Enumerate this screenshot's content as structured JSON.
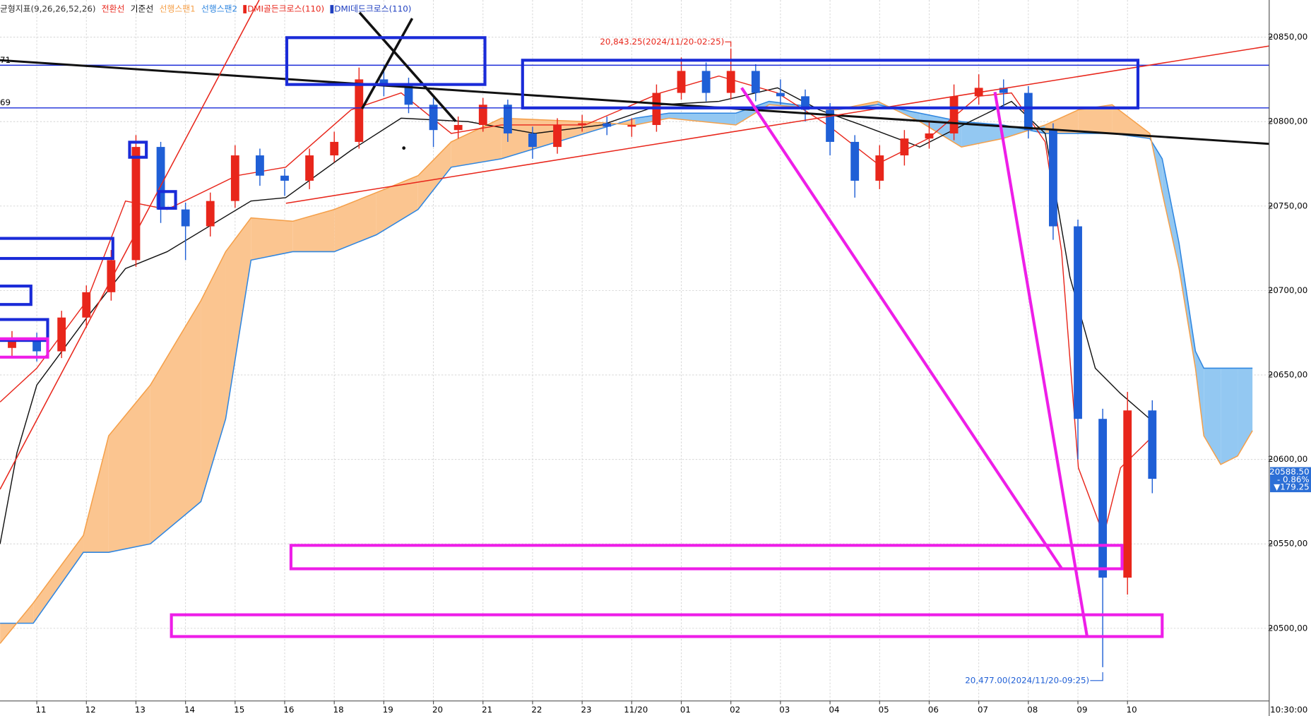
{
  "chart_data": {
    "type": "candlestick",
    "indicator_label": "균형지표(9,26,26,52,26)",
    "xlim": [
      -0.742,
      24.858
    ],
    "ylim": [
      20457,
      20872
    ],
    "xticks": [
      {
        "value": 0,
        "label": "11"
      },
      {
        "value": 1,
        "label": "12"
      },
      {
        "value": 2,
        "label": "13"
      },
      {
        "value": 3,
        "label": "14"
      },
      {
        "value": 4,
        "label": "15"
      },
      {
        "value": 5,
        "label": "16"
      },
      {
        "value": 6,
        "label": "18"
      },
      {
        "value": 7,
        "label": "19"
      },
      {
        "value": 8,
        "label": "20"
      },
      {
        "value": 9,
        "label": "21"
      },
      {
        "value": 10,
        "label": "22"
      },
      {
        "value": 11,
        "label": "23"
      },
      {
        "value": 12,
        "label": "11/20"
      },
      {
        "value": 13,
        "label": "01"
      },
      {
        "value": 14,
        "label": "02"
      },
      {
        "value": 15,
        "label": "03"
      },
      {
        "value": 16,
        "label": "04"
      },
      {
        "value": 17,
        "label": "05"
      },
      {
        "value": 18,
        "label": "06"
      },
      {
        "value": 19,
        "label": "07"
      },
      {
        "value": 20,
        "label": "08"
      },
      {
        "value": 21,
        "label": "09"
      },
      {
        "value": 22,
        "label": "10"
      }
    ],
    "yticks": [
      {
        "value": 20500,
        "label": "20500,00"
      },
      {
        "value": 20550,
        "label": "20550,00"
      },
      {
        "value": 20600,
        "label": "20600,00"
      },
      {
        "value": 20650,
        "label": "20650,00"
      },
      {
        "value": 20700,
        "label": "20700,00"
      },
      {
        "value": 20750,
        "label": "20750,00"
      },
      {
        "value": 20800,
        "label": "20800,00"
      },
      {
        "value": 20850,
        "label": "20850,00"
      }
    ],
    "grid": true,
    "up_color": "#e8261b",
    "down_color": "#1f5fd6",
    "x": [
      -0.5,
      0,
      0.5,
      1,
      1.5,
      2,
      2.5,
      3,
      3.5,
      4,
      4.5,
      5,
      5.5,
      6,
      6.5,
      7,
      7.5,
      8,
      8.5,
      9,
      9.5,
      10,
      10.5,
      11,
      11.5,
      12,
      12.5,
      13,
      13.5,
      14,
      14.5,
      15,
      15.5,
      16,
      16.5,
      17,
      17.5,
      18,
      18.5,
      19,
      19.5,
      20,
      20.5,
      21,
      21.5,
      22,
      22.5
    ],
    "open": [
      20666,
      20671,
      20664,
      20684,
      20699,
      20718,
      20785,
      20748,
      20738,
      20753,
      20780,
      20768,
      20765,
      20780,
      20788,
      20825,
      20822,
      20810,
      20795,
      20798,
      20810,
      20793,
      20785,
      20798,
      20799,
      20797,
      20798,
      20817,
      20830,
      20817,
      20830,
      20817,
      20815,
      20807,
      20788,
      20765,
      20780,
      20790,
      20793,
      20815,
      20820,
      20817,
      20795,
      20738,
      20624,
      20530,
      20629
    ],
    "high": [
      20676,
      20675,
      20688,
      20703,
      20724,
      20792,
      20788,
      20752,
      20758,
      20786,
      20784,
      20772,
      20784,
      20794,
      20832,
      20833,
      20826,
      20814,
      20803,
      20814,
      20813,
      20797,
      20802,
      20804,
      20803,
      20802,
      20822,
      20838,
      20835,
      20843.25,
      20834,
      20825,
      20819,
      20811,
      20792,
      20786,
      20795,
      20800,
      20822,
      20828,
      20825,
      20821,
      20799,
      20742,
      20630,
      20640,
      20635
    ],
    "low": [
      20660,
      20658,
      20660,
      20678,
      20694,
      20714,
      20740,
      20718,
      20732,
      20749,
      20762,
      20756,
      20760,
      20776,
      20784,
      20815,
      20805,
      20785,
      20790,
      20794,
      20788,
      20778,
      20781,
      20794,
      20792,
      20791,
      20794,
      20813,
      20812,
      20813,
      20812,
      20810,
      20800,
      20780,
      20755,
      20760,
      20774,
      20784,
      20789,
      20810,
      20808,
      20790,
      20730,
      20600,
      20477,
      20520,
      20580
    ],
    "close": [
      20671,
      20664,
      20684,
      20699,
      20718,
      20785,
      20748,
      20738,
      20753,
      20780,
      20768,
      20765,
      20780,
      20788,
      20825,
      20822,
      20810,
      20795,
      20798,
      20810,
      20793,
      20785,
      20798,
      20799,
      20797,
      20798,
      20817,
      20830,
      20817,
      20830,
      20817,
      20815,
      20807,
      20788,
      20765,
      20780,
      20790,
      20793,
      20815,
      20820,
      20817,
      20795,
      20738,
      20624,
      20530,
      20629,
      20588.5
    ],
    "series": [
      {
        "name": "전환선",
        "color": "#e8261b",
        "x": [
          -0.74,
          0,
          1.01,
          1.79,
          2.63,
          4.03,
          5.02,
          6.34,
          7.35,
          8.36,
          9.37,
          11.06,
          12.58,
          13.76,
          14.94,
          15.95,
          16.96,
          17.98,
          18.99,
          19.66,
          20.34,
          20.67,
          21.01,
          21.52,
          21.86,
          22.45
        ],
        "values": [
          20634,
          20654,
          20694,
          20753,
          20748,
          20768,
          20773,
          20807,
          20817,
          20793,
          20798,
          20798,
          20817,
          20827,
          20817,
          20798,
          20775,
          20790,
          20815,
          20817,
          20788,
          20723,
          20595,
          20555,
          20595,
          20612
        ]
      },
      {
        "name": "기준선",
        "color": "#111111",
        "x": [
          -0.74,
          -0.4,
          0,
          1.01,
          1.79,
          2.63,
          4.32,
          5.02,
          6.34,
          7.35,
          8.7,
          10.05,
          11.4,
          12.58,
          13.76,
          14.94,
          15.78,
          16.63,
          17.81,
          18.82,
          19.66,
          20.34,
          20.84,
          21.35,
          21.86,
          22.45
        ],
        "values": [
          20550,
          20604,
          20644,
          20684,
          20713,
          20723,
          20753,
          20755,
          20783,
          20802,
          20800,
          20793,
          20798,
          20810,
          20812,
          20820,
          20807,
          20798,
          20785,
          20800,
          20812,
          20793,
          20708,
          20654,
          20639,
          20624
        ]
      },
      {
        "name": "선행스팬1",
        "color": "#f5a04a",
        "x": [
          -0.74,
          -0.07,
          0.94,
          1.45,
          2.29,
          3.31,
          3.81,
          4.32,
          5.16,
          6.0,
          6.85,
          7.69,
          8.36,
          9.37,
          11.06,
          12.07,
          12.75,
          14.1,
          14.77,
          16.12,
          16.96,
          17.81,
          18.65,
          19.49,
          20.34,
          21.01,
          21.69,
          22.45,
          22.7,
          23.04,
          23.37,
          23.54,
          23.88,
          24.22,
          24.52
        ],
        "values": [
          20491,
          20515,
          20555,
          20614,
          20644,
          20694,
          20723,
          20743,
          20741,
          20748,
          20758,
          20768,
          20788,
          20802,
          20800,
          20798,
          20802,
          20798,
          20810,
          20807,
          20812,
          20800,
          20785,
          20790,
          20798,
          20807,
          20810,
          20793,
          20758,
          20713,
          20654,
          20614,
          20597,
          20602,
          20617
        ]
      },
      {
        "name": "선행스팬2",
        "color": "#2f86e0",
        "x": [
          -0.74,
          -0.07,
          0.94,
          1.45,
          2.29,
          3.31,
          3.81,
          4.32,
          5.16,
          6.0,
          6.85,
          7.69,
          8.36,
          9.37,
          11.06,
          12.07,
          12.75,
          14.1,
          14.77,
          16.12,
          16.96,
          17.81,
          18.65,
          19.49,
          20.34,
          21.01,
          21.69,
          22.45,
          22.7,
          23.04,
          23.37,
          23.54,
          23.88,
          24.22,
          24.52
        ],
        "values": [
          20503,
          20503,
          20545,
          20545,
          20550,
          20575,
          20624,
          20718,
          20723,
          20723,
          20733,
          20748,
          20773,
          20778,
          20793,
          20802,
          20805,
          20805,
          20812,
          20807,
          20810,
          20805,
          20800,
          20798,
          20793,
          20793,
          20793,
          20790,
          20778,
          20728,
          20664,
          20654,
          20654,
          20654,
          20654
        ]
      }
    ],
    "cloud_up_color": "#fbc590",
    "cloud_down_color": "#93c8f2",
    "signals": [
      {
        "name": "DMI골든크로스(110)",
        "color": "#e8261b"
      },
      {
        "name": "DMI데드크로스(110)",
        "color": "#1f3fc0"
      }
    ],
    "high_label": "20,843.25(2024/11/20-02:25)",
    "low_label": "20,477.00(2024/11/20-09:25)",
    "last_price_label": "20588.50",
    "last_change_label": "- 0.86%",
    "last_diff_label": "▼179.25",
    "time_label": "10:30:00",
    "hline_labels": [
      "71",
      "69"
    ]
  }
}
